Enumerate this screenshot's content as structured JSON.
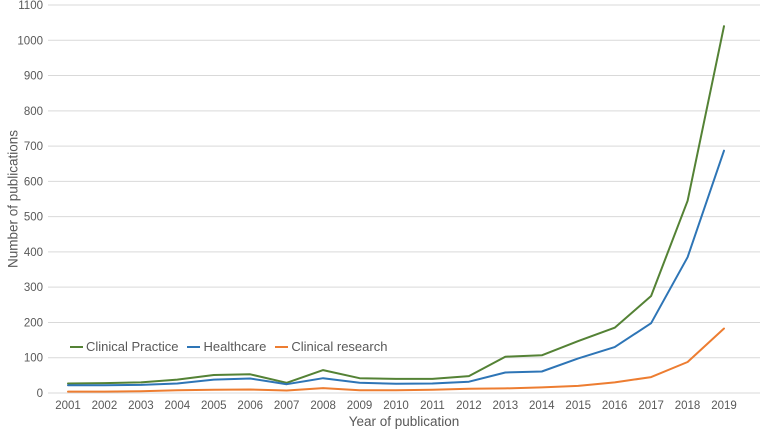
{
  "chart_data": {
    "type": "line",
    "title": "",
    "xlabel": "Year of publication",
    "ylabel": "Number of publications",
    "x": [
      2001,
      2002,
      2003,
      2004,
      2005,
      2006,
      2007,
      2008,
      2009,
      2010,
      2011,
      2012,
      2013,
      2014,
      2015,
      2016,
      2017,
      2018,
      2019
    ],
    "series": [
      {
        "name": "Clinical Practice",
        "color": "#548235",
        "values": [
          27,
          28,
          30,
          38,
          51,
          53,
          29,
          65,
          42,
          40,
          40,
          48,
          103,
          107,
          147,
          185,
          275,
          545,
          1040
        ]
      },
      {
        "name": "Healthcare",
        "color": "#2E75B6",
        "values": [
          22,
          22,
          23,
          27,
          38,
          41,
          25,
          42,
          29,
          26,
          27,
          32,
          58,
          61,
          98,
          130,
          198,
          385,
          687
        ]
      },
      {
        "name": "Clinical research",
        "color": "#ED7D31",
        "values": [
          4,
          4,
          5,
          8,
          9,
          10,
          7,
          14,
          8,
          8,
          9,
          12,
          13,
          16,
          20,
          30,
          45,
          88,
          183
        ]
      }
    ],
    "ylim": [
      0,
      1100
    ],
    "ytick_step": 100,
    "grid": "horizontal",
    "gridline_color": "#D9D9D9",
    "tick_label_color": "#595959",
    "legend_position": "inside-left",
    "line_width": 2
  }
}
